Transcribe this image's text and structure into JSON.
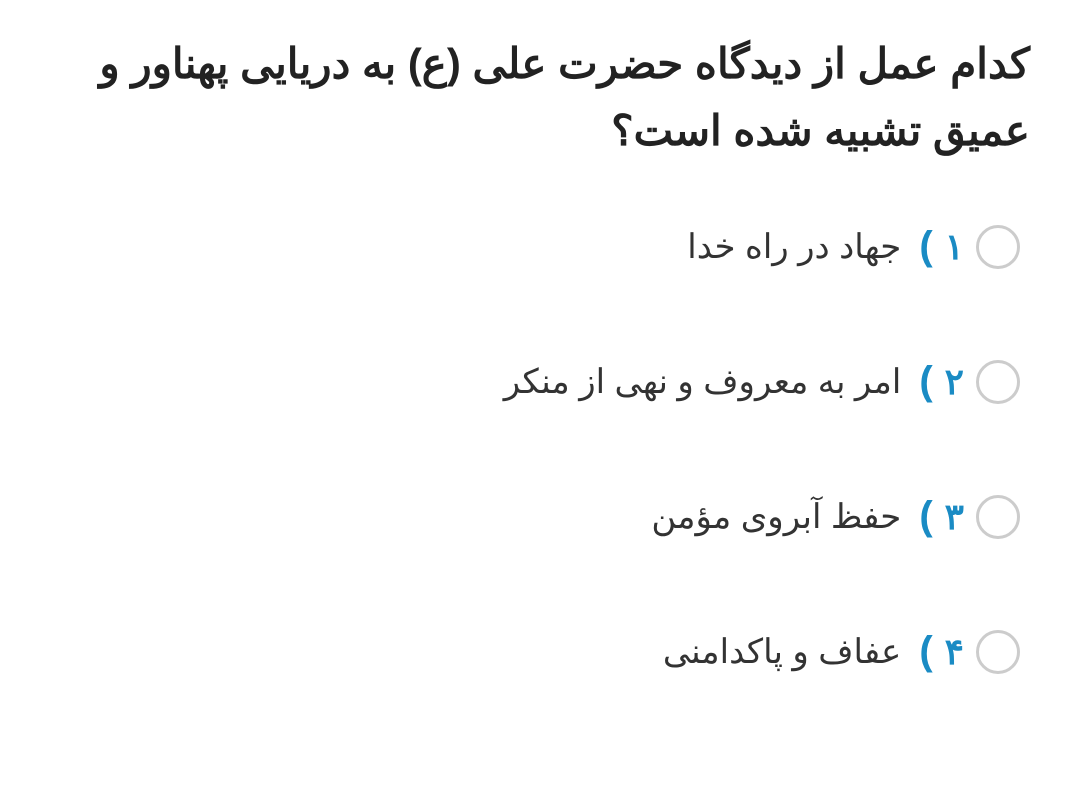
{
  "question": {
    "text": "کدام عمل از دیدگاه حضرت علی (ع) به دریایی پهناور و عمیق تشبیه شده است؟",
    "color": "#222222",
    "fontsize": 42,
    "fontweight": 900
  },
  "options": [
    {
      "number": "۱",
      "text": "جهاد در راه خدا"
    },
    {
      "number": "۲",
      "text": "امر به معروف و نهی از منکر"
    },
    {
      "number": "۳",
      "text": "حفظ آبروی مؤمن"
    },
    {
      "number": "۴",
      "text": "عفاف و پاکدامنی"
    }
  ],
  "styles": {
    "accent_color": "#1a8bc4",
    "radio_border_color": "#cccccc",
    "option_text_color": "#333333",
    "background_color": "#ffffff",
    "paren_open": ")",
    "paren_close": "(",
    "option_fontsize": 34,
    "number_fontsize": 36,
    "radio_size": 44
  }
}
